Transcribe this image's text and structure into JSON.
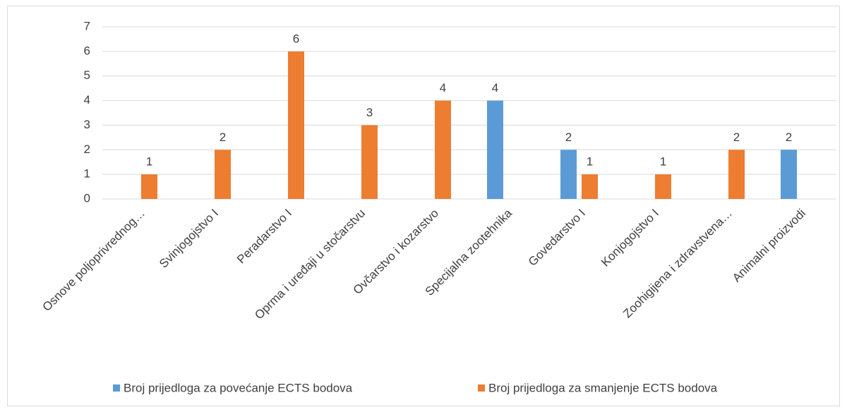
{
  "chart_data": {
    "type": "bar",
    "categories": [
      "Osnove poljoprivrednog…",
      "Svinjogojstvo I",
      "Peradarstvo I",
      "Oprma i uređaji u stočarstvu",
      "Ovčarstvo i kozarstvo",
      "Specijalna zootehnika",
      "Govedarstvo I",
      "Konjogojstvo I",
      "Zoohigijena i zdravstvena…",
      "Animalni proizvodi"
    ],
    "series": [
      {
        "name": "Broj prijedloga za povećanje ECTS bodova",
        "color": "#5b9bd5",
        "values": [
          null,
          null,
          null,
          null,
          null,
          4,
          2,
          null,
          null,
          2
        ]
      },
      {
        "name": "Broj prijedloga za smanjenje ECTS bodova",
        "color": "#ed7d31",
        "values": [
          1,
          2,
          6,
          3,
          4,
          null,
          1,
          1,
          2,
          null
        ]
      }
    ],
    "ylim": [
      0,
      7
    ],
    "yticks": [
      0,
      1,
      2,
      3,
      4,
      5,
      6,
      7
    ],
    "grid": true,
    "legend": "bottom",
    "data_labels": true
  }
}
